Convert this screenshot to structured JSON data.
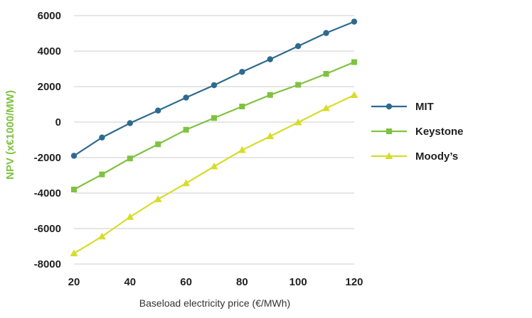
{
  "chart_data": {
    "type": "line",
    "xlabel": "Baseload electricity price (€/MWh)",
    "ylabel": "NPV (x€1000/MW)",
    "xlim": [
      20,
      120
    ],
    "ylim": [
      -8000,
      6000
    ],
    "x_ticks": [
      "20",
      "40",
      "60",
      "80",
      "100",
      "120"
    ],
    "y_ticks": [
      "6000",
      "4000",
      "2000",
      "0",
      "-2000",
      "-4000",
      "-6000",
      "-8000"
    ],
    "grid": "horizontal",
    "legend_position": "right",
    "x": [
      20,
      30,
      40,
      50,
      60,
      70,
      80,
      90,
      100,
      110,
      120
    ],
    "series": [
      {
        "name": "MIT",
        "color": "#2e6a8e",
        "marker": "circle",
        "values": [
          -1900,
          -870,
          -60,
          650,
          1380,
          2080,
          2830,
          3540,
          4280,
          5020,
          5660
        ]
      },
      {
        "name": "Keystone",
        "color": "#7fc241",
        "marker": "square",
        "values": [
          -3800,
          -2950,
          -2050,
          -1250,
          -430,
          230,
          880,
          1530,
          2100,
          2720,
          3380
        ]
      },
      {
        "name": "Moody’s",
        "color": "#d7dc2a",
        "marker": "triangle",
        "values": [
          -7400,
          -6450,
          -5350,
          -4350,
          -3450,
          -2500,
          -1580,
          -800,
          -20,
          780,
          1520
        ]
      }
    ]
  },
  "colors": {
    "ylabel": "#7fc241",
    "grid": "#cccccc"
  }
}
